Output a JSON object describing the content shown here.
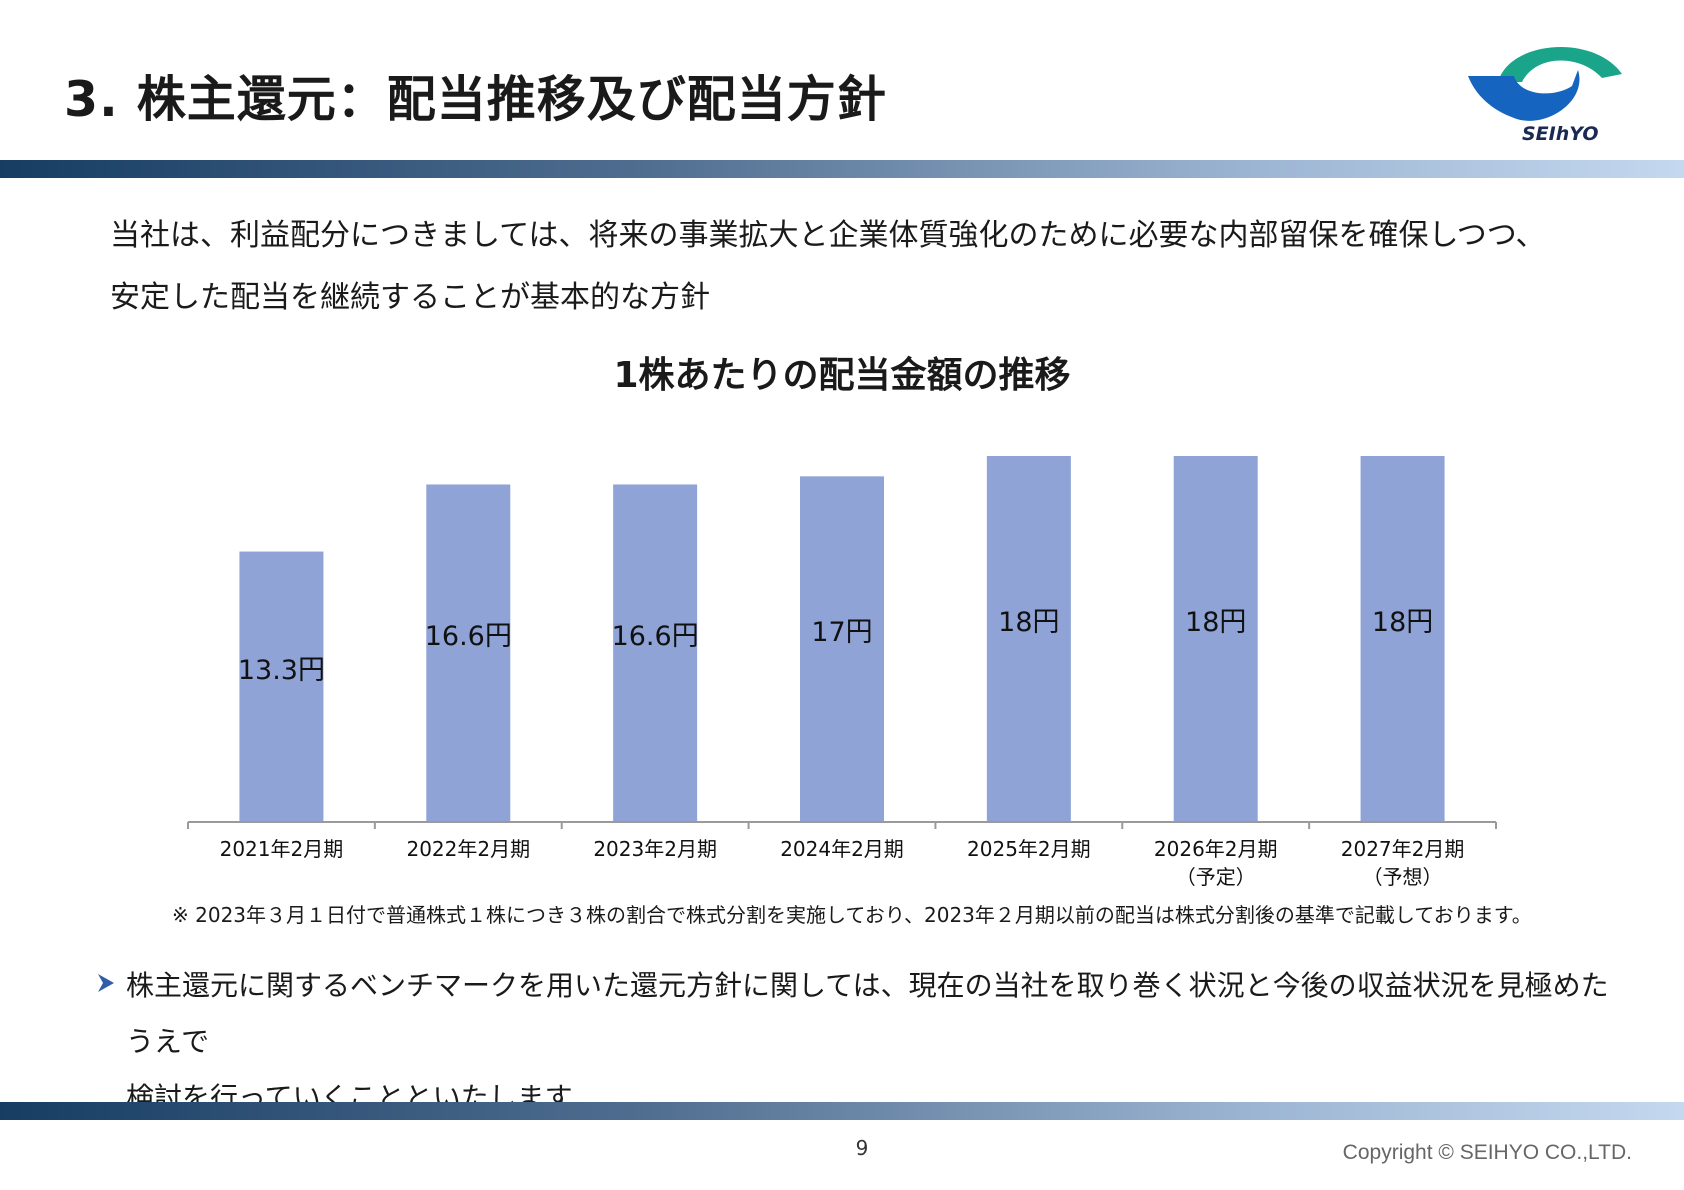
{
  "header": {
    "title": "3. 株主還元：配当推移及び配当方針",
    "logo_text": "SEIhYO"
  },
  "intro": {
    "line1": "当社は、利益配分につきましては、将来の事業拡大と企業体質強化のために必要な内部留保を確保しつつ、",
    "line2": "安定した配当を継続することが基本的な方針"
  },
  "chart_data": {
    "type": "bar",
    "title": "1株あたりの配当金額の推移",
    "categories": [
      "2021年2月期",
      "2022年2月期",
      "2023年2月期",
      "2024年2月期",
      "2025年2月期",
      "2026年2月期",
      "2027年2月期"
    ],
    "category_notes": [
      "",
      "",
      "",
      "",
      "",
      "（予定）",
      "（予想）"
    ],
    "values": [
      13.3,
      16.6,
      16.6,
      17,
      18,
      18,
      18
    ],
    "data_labels": [
      "13.3円",
      "16.6円",
      "16.6円",
      "17円",
      "18円",
      "18円",
      "18円"
    ],
    "xlabel": "",
    "ylabel": "",
    "ylim": [
      0,
      18
    ],
    "grid": false,
    "legend": "none",
    "bar_color": "#8fa3d6"
  },
  "note": "※ 2023年３月１日付で普通株式１株につき３株の割合で株式分割を実施しており、2023年２月期以前の配当は株式分割後の基準で記載しております。",
  "bullet": {
    "line1": "株主還元に関するベンチマークを用いた還元方針に関しては、現在の当社を取り巻く状況と今後の収益状況を見極めたうえで",
    "line2": "検討を行っていくことといたします"
  },
  "footer": {
    "page_number": "9",
    "copyright": "Copyright © SEIHYO CO.,LTD."
  },
  "colors": {
    "logo_teal": "#1aa58a",
    "logo_blue": "#1565c0",
    "band_dark": "#173d63",
    "band_light": "#c4d8ef",
    "bullet_arrow": "#2f5da8"
  }
}
